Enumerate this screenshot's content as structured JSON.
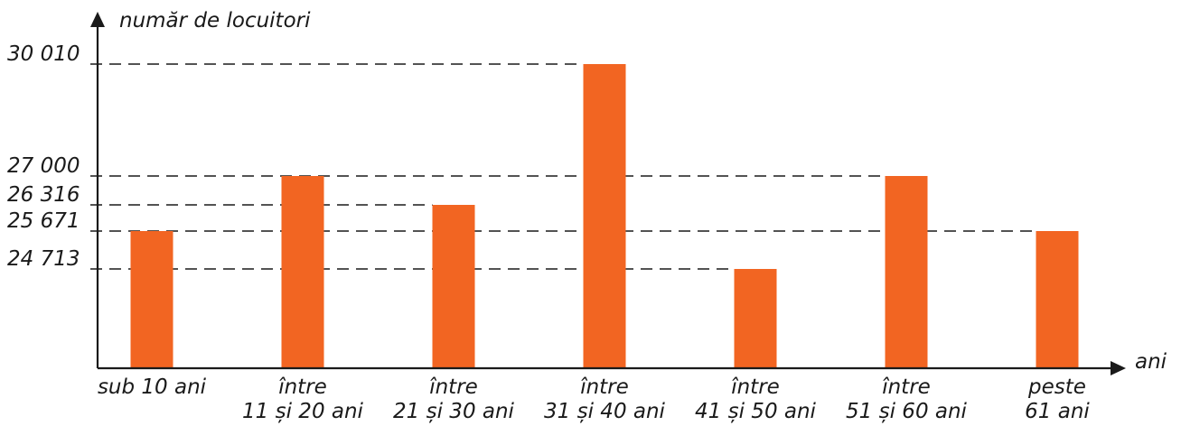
{
  "chart_data": {
    "type": "bar",
    "ylabel": "număr de locuitori",
    "xlabel": "ani",
    "categories": [
      [
        "sub 10 ani"
      ],
      [
        "între",
        "11 și 20 ani"
      ],
      [
        "între",
        "21 și 30 ani"
      ],
      [
        "între",
        "31 și 40 ani"
      ],
      [
        "între",
        "41 și 50 ani"
      ],
      [
        "între",
        "51 și 60 ani"
      ],
      [
        "peste",
        "61 ani"
      ]
    ],
    "values": [
      25671,
      27000,
      26316,
      30010,
      24713,
      27000,
      25671
    ],
    "y_ticks": [
      {
        "value": 30010,
        "label": "30 010"
      },
      {
        "value": 27000,
        "label": "27 000"
      },
      {
        "value": 26316,
        "label": "26 316"
      },
      {
        "value": 25671,
        "label": "25 671"
      },
      {
        "value": 24713,
        "label": "24 713"
      }
    ],
    "bar_color": "#f26522",
    "axis_color": "#1a1a1a",
    "grid": false
  }
}
